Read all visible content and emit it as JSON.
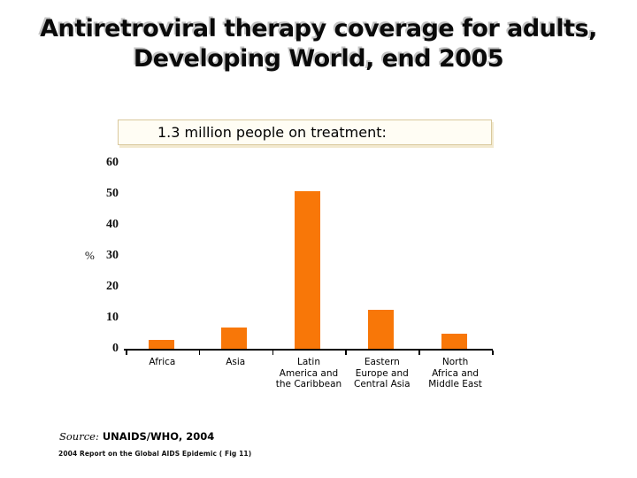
{
  "slide": {
    "title_line1": "Antiretroviral therapy coverage for adults,",
    "title_line2": "Developing World, end 2005",
    "callout": "1.3 million people on treatment:",
    "source_prefix": "Source:",
    "source_text": " UNAIDS/WHO, 2004",
    "footnote": "2004 Report on the Global AIDS Epidemic ( Fig 11)"
  },
  "chart_data": {
    "type": "bar",
    "categories": [
      "Africa",
      "Asia",
      "Latin\nAmerica and\nthe Caribbean",
      "Eastern\nEurope and\nCentral Asia",
      "North\nAfrica and\nMiddle East"
    ],
    "values": [
      3,
      7,
      51,
      12.5,
      5
    ],
    "title": "",
    "xlabel": "",
    "ylabel": "%",
    "yticks": [
      0,
      10,
      20,
      30,
      40,
      50,
      60
    ],
    "ylim": [
      0,
      60
    ],
    "grid": false,
    "legend_position": "none",
    "bar_color": "#F87708",
    "axis_color": "#000000"
  }
}
